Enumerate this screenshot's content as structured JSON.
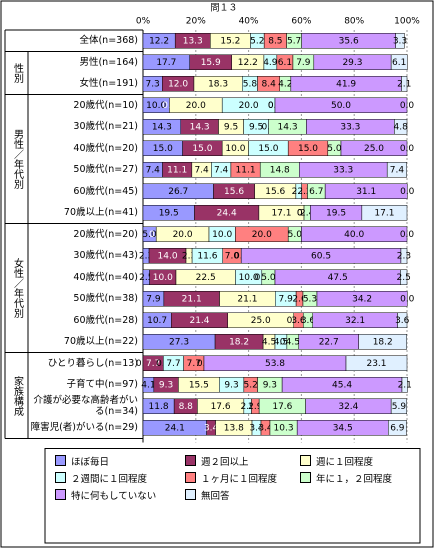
{
  "chart_data": {
    "type": "stacked-bar-horizontal",
    "title": "問１３",
    "xlim": [
      0,
      100
    ],
    "xticks": [
      {
        "value": 0,
        "label": "0%"
      },
      {
        "value": 20,
        "label": "20%"
      },
      {
        "value": 40,
        "label": "40%"
      },
      {
        "value": 60,
        "label": "60%"
      },
      {
        "value": 80,
        "label": "80%"
      },
      {
        "value": 100,
        "label": "100%"
      }
    ],
    "grid": true,
    "groups": [
      {
        "categories": [
          "全体(n=368)"
        ]
      },
      {
        "label": "性別",
        "categories": [
          "男性(n=164)",
          "女性(n=191)"
        ]
      },
      {
        "label": "男性／年代別",
        "categories": [
          "20歳代(n=10)",
          "30歳代(n=21)",
          "40歳代(n=20)",
          "50歳代(n=27)",
          "60歳代(n=45)",
          "70歳以上(n=41)"
        ]
      },
      {
        "label": "女性／年代別",
        "categories": [
          "20歳代(n=20)",
          "30歳代(n=43)",
          "40歳代(n=40)",
          "50歳代(n=38)",
          "60歳代(n=28)",
          "70歳以上(n=22)"
        ]
      },
      {
        "label": "家族構成",
        "categories": [
          "ひとり暮らし(n=13)",
          "子育て中(n=97)",
          "介護が必要な高齢者がいる(n=34)",
          "障害児(者)がいる(n=29)"
        ]
      }
    ],
    "series": [
      {
        "name": "ほぼ毎日",
        "color": "#9999FF",
        "values": [
          12.2,
          17.7,
          7.3,
          10,
          14.3,
          15,
          7.4,
          26.7,
          19.5,
          5,
          2.3,
          2.5,
          7.9,
          10.7,
          27.3,
          0,
          4.1,
          11.8,
          24.1
        ],
        "value_labels": [
          "12.2",
          "17.7",
          "7.3",
          "10.0",
          "14.3",
          "15.0",
          "7.4",
          "26.7",
          "19.5",
          "5.0",
          "2.3",
          "2.5",
          "7.9",
          "10.7",
          "27.3",
          "0.0",
          "4.1",
          "11.8",
          "24.1"
        ]
      },
      {
        "name": "週２回以上",
        "color": "#993366",
        "values": [
          13.3,
          15.9,
          12,
          0,
          14.3,
          15,
          11.1,
          15.6,
          24.4,
          0,
          14,
          10,
          21.1,
          21.4,
          18.2,
          7.7,
          9.3,
          8.8,
          3.4
        ],
        "value_labels": [
          "13.3",
          "15.9",
          "12.0",
          "0.0",
          "14.3",
          "15.0",
          "11.1",
          "15.6",
          "24.4",
          "0.0",
          "14.0",
          "10.0",
          "21.1",
          "21.4",
          "18.2",
          "7.7",
          "9.3",
          "8.8",
          "3.4"
        ]
      },
      {
        "name": "週に１回程度",
        "color": "#FFFFCC",
        "values": [
          15.2,
          12.2,
          18.3,
          20,
          9.5,
          10,
          7.4,
          15.6,
          17.1,
          20,
          2.3,
          22.5,
          21.1,
          25,
          4.5,
          0,
          15.5,
          17.6,
          13.8
        ],
        "value_labels": [
          "15.2",
          "12.2",
          "18.3",
          "20.0",
          "9.5",
          "10.0",
          "7.4",
          "15.6",
          "17.1",
          "20.0",
          "2.3",
          "22.5",
          "21.1",
          "25.0",
          "4.5",
          "0.0",
          "15.5",
          "17.6",
          "13.8"
        ]
      },
      {
        "name": "２週間に１回程度",
        "color": "#CCFFFF",
        "values": [
          5.2,
          4.9,
          5.8,
          20,
          9.5,
          15,
          7.4,
          2.2,
          0,
          10,
          11.6,
          10,
          7.9,
          0,
          4.5,
          7.7,
          9.3,
          2.9,
          3.4
        ],
        "value_labels": [
          "5.2",
          "4.9",
          "5.8",
          "20.0",
          "9.5",
          "15.0",
          "7.4",
          "2.2",
          "0.0",
          "10.0",
          "11.6",
          "10.0",
          "7.9",
          "0.0",
          "4.5",
          "7.7",
          "9.3",
          "2.9",
          "3.4"
        ]
      },
      {
        "name": "１ヶ月に１回程度",
        "color": "#FF8080",
        "values": [
          8.5,
          6.1,
          8.4,
          0,
          0,
          15,
          11.1,
          2.2,
          0,
          20,
          7,
          0,
          2.6,
          3.6,
          0,
          7.7,
          5.2,
          2.9,
          3.4
        ],
        "value_labels": [
          "8.5",
          "6.1",
          "8.4",
          "0.0",
          "0.0",
          "15.0",
          "11.1",
          "2.2",
          "0.0",
          "20.0",
          "7.0",
          "0.0",
          "2.6",
          "3.6",
          "0.0",
          "7.7",
          "5.2",
          "2.9",
          "3.4"
        ]
      },
      {
        "name": "年に１，２回程度",
        "color": "#CCFFCC",
        "values": [
          5.7,
          7.9,
          4.2,
          0,
          14.3,
          5,
          14.8,
          6.7,
          2.4,
          5,
          0,
          5,
          5.3,
          3.6,
          4.5,
          0,
          9.3,
          17.6,
          10.3
        ],
        "value_labels": [
          "5.7",
          "7.9",
          "4.2",
          "0.0",
          "14.3",
          "5.0",
          "14.8",
          "6.7",
          "2.4",
          "5.0",
          "0.0",
          "5.0",
          "5.3",
          "3.6",
          "4.5",
          "0.0",
          "9.3",
          "17.6",
          "10.3"
        ]
      },
      {
        "name": "特に何もしていない",
        "color": "#CC99FF",
        "values": [
          35.6,
          29.3,
          41.9,
          50,
          33.3,
          25,
          33.3,
          31.1,
          19.5,
          40,
          60.5,
          47.5,
          34.2,
          32.1,
          22.7,
          53.8,
          45.4,
          32.4,
          34.5
        ],
        "value_labels": [
          "35.6",
          "29.3",
          "41.9",
          "50.0",
          "33.3",
          "25.0",
          "33.3",
          "31.1",
          "19.5",
          "40.0",
          "60.5",
          "47.5",
          "34.2",
          "32.1",
          "22.7",
          "53.8",
          "45.4",
          "32.4",
          "34.5"
        ]
      },
      {
        "name": "無回答",
        "color": "#E0F0FF",
        "values": [
          3.3,
          6.1,
          2.1,
          0,
          4.8,
          0,
          7.4,
          0,
          17.1,
          0,
          2.3,
          2.5,
          0,
          3.6,
          18.2,
          23.1,
          2.1,
          5.9,
          6.9
        ],
        "value_labels": [
          "3.3",
          "6.1",
          "2.1",
          "0.0",
          "4.8",
          "0.0",
          "7.4",
          "0.0",
          "17.1",
          "0.0",
          "2.3",
          "2.5",
          "0.0",
          "3.6",
          "18.2",
          "23.1",
          "2.1",
          "5.9",
          "6.9"
        ]
      }
    ]
  }
}
